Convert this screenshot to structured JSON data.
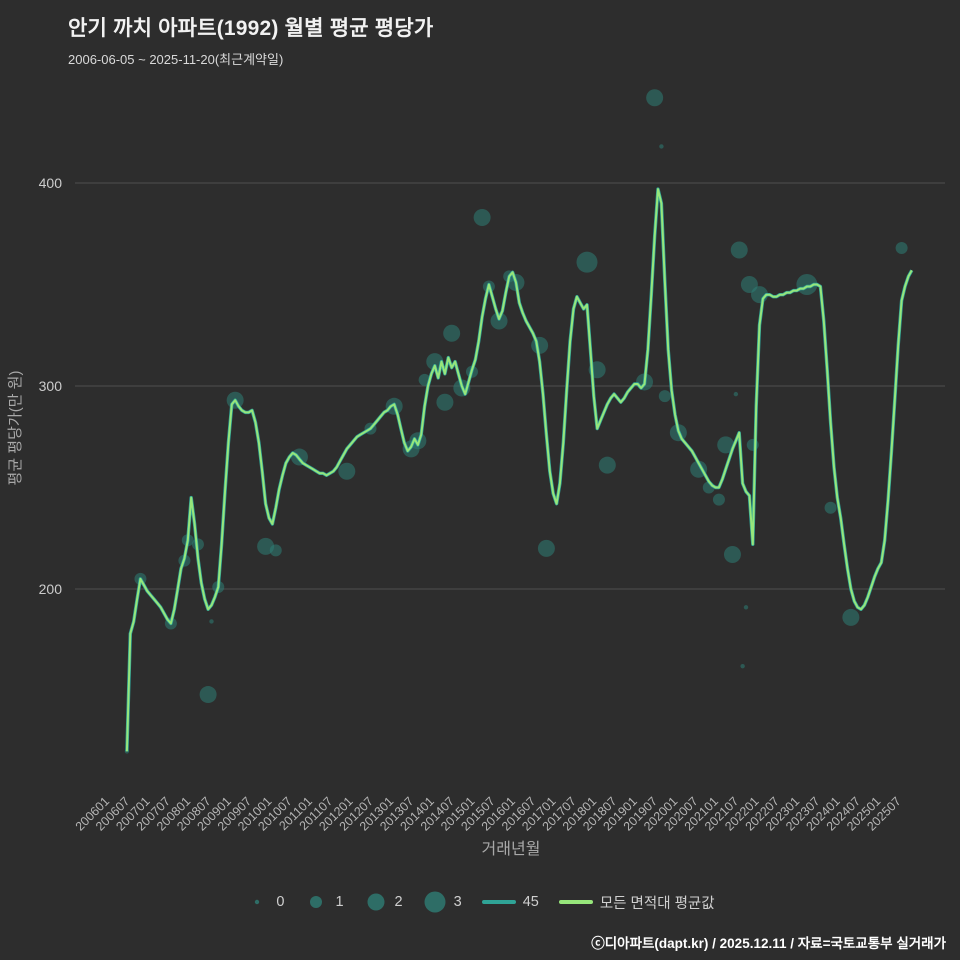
{
  "header": {
    "title": "안기 까치 아파트(1992) 월별 평균 평당가",
    "subtitle": "2006-06-05 ~ 2025-11-20(최근계약일)"
  },
  "footer": {
    "credit": "ⓒ디아파트(dapt.kr) / 2025.12.11 / 자료=국토교통부 실거래가"
  },
  "legend": {
    "size_items": [
      {
        "label": "0"
      },
      {
        "label": "1"
      },
      {
        "label": "2"
      },
      {
        "label": "3"
      }
    ],
    "line_items": [
      {
        "label": "45",
        "color": "#2fa396"
      },
      {
        "label": "모든 면적대 평균값",
        "color": "#97e67b"
      }
    ]
  },
  "chart_data": {
    "type": "line",
    "title": "안기 까치 아파트(1992) 월별 평균 평당가",
    "subtitle": "2006-06-05 ~ 2025-11-20(최근계약일)",
    "xlabel": "거래년월",
    "ylabel": "평균 평당가(만 원)",
    "y_ticks": [
      200,
      300,
      400
    ],
    "ylim": [
      110,
      460
    ],
    "grid": "horizontal",
    "legend_position": "bottom",
    "background": "#2d2d2d",
    "bubble_color": "#2e7d74",
    "bubble_sizes": [
      0,
      1,
      2,
      3
    ],
    "x_ticks": [
      "200601",
      "200607",
      "200701",
      "200707",
      "200801",
      "200807",
      "200901",
      "200907",
      "201001",
      "201007",
      "201101",
      "201107",
      "201201",
      "201207",
      "201301",
      "201307",
      "201401",
      "201407",
      "201501",
      "201507",
      "201601",
      "201607",
      "201701",
      "201707",
      "201801",
      "201807",
      "201901",
      "201907",
      "202001",
      "202007",
      "202101",
      "202107",
      "202201",
      "202207",
      "202301",
      "202307",
      "202401",
      "202407",
      "202501",
      "202507"
    ],
    "series": [
      {
        "name": "45",
        "type": "line",
        "color": "#2fa396",
        "overlaps_average_line": true
      },
      {
        "name": "모든 면적대 평균값",
        "type": "line",
        "color": "#97e67b",
        "points": [
          [
            200606,
            120
          ],
          [
            200607,
            178
          ],
          [
            200608,
            184
          ],
          [
            200609,
            195
          ],
          [
            200610,
            205
          ],
          [
            200611,
            202
          ],
          [
            200612,
            199
          ],
          [
            200701,
            197
          ],
          [
            200702,
            195
          ],
          [
            200703,
            193
          ],
          [
            200704,
            191
          ],
          [
            200705,
            188
          ],
          [
            200706,
            185
          ],
          [
            200707,
            183
          ],
          [
            200708,
            190
          ],
          [
            200709,
            200
          ],
          [
            200710,
            210
          ],
          [
            200711,
            215
          ],
          [
            200712,
            224
          ],
          [
            200801,
            245
          ],
          [
            200802,
            232
          ],
          [
            200803,
            215
          ],
          [
            200804,
            203
          ],
          [
            200805,
            195
          ],
          [
            200806,
            190
          ],
          [
            200807,
            192
          ],
          [
            200808,
            196
          ],
          [
            200809,
            201
          ],
          [
            200810,
            222
          ],
          [
            200811,
            248
          ],
          [
            200812,
            272
          ],
          [
            200901,
            291
          ],
          [
            200902,
            293
          ],
          [
            200903,
            290
          ],
          [
            200904,
            288
          ],
          [
            200905,
            287
          ],
          [
            200906,
            287
          ],
          [
            200907,
            288
          ],
          [
            200908,
            282
          ],
          [
            200909,
            272
          ],
          [
            200910,
            258
          ],
          [
            200911,
            242
          ],
          [
            200912,
            235
          ],
          [
            201001,
            232
          ],
          [
            201002,
            240
          ],
          [
            201003,
            249
          ],
          [
            201004,
            256
          ],
          [
            201005,
            262
          ],
          [
            201006,
            265
          ],
          [
            201007,
            267
          ],
          [
            201008,
            266
          ],
          [
            201009,
            264
          ],
          [
            201010,
            262
          ],
          [
            201011,
            261
          ],
          [
            201012,
            260
          ],
          [
            201101,
            259
          ],
          [
            201102,
            258
          ],
          [
            201103,
            257
          ],
          [
            201104,
            257
          ],
          [
            201105,
            256
          ],
          [
            201106,
            257
          ],
          [
            201107,
            258
          ],
          [
            201108,
            260
          ],
          [
            201109,
            263
          ],
          [
            201110,
            266
          ],
          [
            201111,
            269
          ],
          [
            201112,
            271
          ],
          [
            201201,
            273
          ],
          [
            201202,
            275
          ],
          [
            201203,
            276
          ],
          [
            201204,
            277
          ],
          [
            201205,
            278
          ],
          [
            201206,
            279
          ],
          [
            201207,
            281
          ],
          [
            201208,
            283
          ],
          [
            201209,
            285
          ],
          [
            201210,
            287
          ],
          [
            201211,
            288
          ],
          [
            201212,
            290
          ],
          [
            201301,
            291
          ],
          [
            201302,
            286
          ],
          [
            201303,
            279
          ],
          [
            201304,
            272
          ],
          [
            201305,
            268
          ],
          [
            201306,
            270
          ],
          [
            201307,
            274
          ],
          [
            201308,
            271
          ],
          [
            201309,
            276
          ],
          [
            201310,
            290
          ],
          [
            201311,
            300
          ],
          [
            201312,
            306
          ],
          [
            201401,
            310
          ],
          [
            201402,
            304
          ],
          [
            201403,
            312
          ],
          [
            201404,
            306
          ],
          [
            201405,
            314
          ],
          [
            201406,
            309
          ],
          [
            201407,
            312
          ],
          [
            201408,
            306
          ],
          [
            201409,
            300
          ],
          [
            201410,
            296
          ],
          [
            201411,
            302
          ],
          [
            201412,
            308
          ],
          [
            201501,
            313
          ],
          [
            201502,
            322
          ],
          [
            201503,
            334
          ],
          [
            201504,
            343
          ],
          [
            201505,
            350
          ],
          [
            201506,
            344
          ],
          [
            201507,
            338
          ],
          [
            201508,
            333
          ],
          [
            201509,
            337
          ],
          [
            201510,
            346
          ],
          [
            201511,
            354
          ],
          [
            201512,
            356
          ],
          [
            201601,
            351
          ],
          [
            201602,
            341
          ],
          [
            201603,
            336
          ],
          [
            201604,
            332
          ],
          [
            201605,
            329
          ],
          [
            201606,
            326
          ],
          [
            201607,
            322
          ],
          [
            201608,
            312
          ],
          [
            201609,
            296
          ],
          [
            201610,
            276
          ],
          [
            201611,
            258
          ],
          [
            201612,
            247
          ],
          [
            201701,
            242
          ],
          [
            201702,
            252
          ],
          [
            201703,
            272
          ],
          [
            201704,
            298
          ],
          [
            201705,
            322
          ],
          [
            201706,
            338
          ],
          [
            201707,
            344
          ],
          [
            201708,
            341
          ],
          [
            201709,
            338
          ],
          [
            201710,
            340
          ],
          [
            201711,
            318
          ],
          [
            201712,
            295
          ],
          [
            201801,
            279
          ],
          [
            201802,
            283
          ],
          [
            201803,
            287
          ],
          [
            201804,
            291
          ],
          [
            201805,
            294
          ],
          [
            201806,
            296
          ],
          [
            201807,
            294
          ],
          [
            201808,
            292
          ],
          [
            201809,
            294
          ],
          [
            201810,
            297
          ],
          [
            201811,
            299
          ],
          [
            201812,
            301
          ],
          [
            201901,
            301
          ],
          [
            201902,
            299
          ],
          [
            201903,
            301
          ],
          [
            201904,
            318
          ],
          [
            201905,
            345
          ],
          [
            201906,
            374
          ],
          [
            201907,
            397
          ],
          [
            201908,
            390
          ],
          [
            201909,
            352
          ],
          [
            201910,
            318
          ],
          [
            201911,
            298
          ],
          [
            201912,
            286
          ],
          [
            202001,
            278
          ],
          [
            202002,
            274
          ],
          [
            202003,
            272
          ],
          [
            202004,
            270
          ],
          [
            202005,
            268
          ],
          [
            202006,
            265
          ],
          [
            202007,
            262
          ],
          [
            202008,
            259
          ],
          [
            202009,
            256
          ],
          [
            202010,
            253
          ],
          [
            202011,
            251
          ],
          [
            202012,
            250
          ],
          [
            202101,
            250
          ],
          [
            202102,
            254
          ],
          [
            202103,
            259
          ],
          [
            202104,
            264
          ],
          [
            202105,
            269
          ],
          [
            202106,
            273
          ],
          [
            202107,
            277
          ],
          [
            202108,
            252
          ],
          [
            202109,
            248
          ],
          [
            202110,
            246
          ],
          [
            202111,
            222
          ],
          [
            202112,
            290
          ],
          [
            202201,
            330
          ],
          [
            202202,
            343
          ],
          [
            202203,
            345
          ],
          [
            202204,
            345
          ],
          [
            202205,
            344
          ],
          [
            202206,
            344
          ],
          [
            202207,
            345
          ],
          [
            202208,
            345
          ],
          [
            202209,
            346
          ],
          [
            202210,
            346
          ],
          [
            202211,
            347
          ],
          [
            202212,
            347
          ],
          [
            202301,
            348
          ],
          [
            202302,
            348
          ],
          [
            202303,
            349
          ],
          [
            202304,
            349
          ],
          [
            202305,
            350
          ],
          [
            202306,
            350
          ],
          [
            202307,
            349
          ],
          [
            202308,
            332
          ],
          [
            202309,
            308
          ],
          [
            202310,
            282
          ],
          [
            202311,
            260
          ],
          [
            202312,
            245
          ],
          [
            202401,
            235
          ],
          [
            202402,
            222
          ],
          [
            202403,
            210
          ],
          [
            202404,
            200
          ],
          [
            202405,
            194
          ],
          [
            202406,
            191
          ],
          [
            202407,
            190
          ],
          [
            202408,
            192
          ],
          [
            202409,
            196
          ],
          [
            202410,
            201
          ],
          [
            202411,
            206
          ],
          [
            202412,
            210
          ],
          [
            202501,
            213
          ],
          [
            202502,
            224
          ],
          [
            202503,
            244
          ],
          [
            202504,
            268
          ],
          [
            202505,
            294
          ],
          [
            202506,
            320
          ],
          [
            202507,
            342
          ],
          [
            202508,
            349
          ],
          [
            202509,
            354
          ],
          [
            202510,
            357
          ]
        ]
      }
    ],
    "scatter": [
      [
        200606,
        120,
        0
      ],
      [
        200610,
        205,
        1
      ],
      [
        200707,
        183,
        1
      ],
      [
        200711,
        214,
        1
      ],
      [
        200712,
        224,
        1
      ],
      [
        200803,
        222,
        1
      ],
      [
        200806,
        148,
        2
      ],
      [
        200807,
        184,
        0
      ],
      [
        200809,
        201,
        1
      ],
      [
        200902,
        293,
        2
      ],
      [
        200911,
        221,
        2
      ],
      [
        201002,
        219,
        1
      ],
      [
        201009,
        265,
        2
      ],
      [
        201111,
        258,
        2
      ],
      [
        201206,
        279,
        1
      ],
      [
        201301,
        290,
        2
      ],
      [
        201306,
        269,
        2
      ],
      [
        201308,
        273,
        2
      ],
      [
        201310,
        303,
        1
      ],
      [
        201401,
        312,
        2
      ],
      [
        201404,
        292,
        2
      ],
      [
        201406,
        326,
        2
      ],
      [
        201409,
        299,
        2
      ],
      [
        201412,
        307,
        1
      ],
      [
        201503,
        383,
        2
      ],
      [
        201505,
        349,
        1
      ],
      [
        201508,
        332,
        2
      ],
      [
        201511,
        354,
        1
      ],
      [
        201601,
        351,
        2
      ],
      [
        201608,
        320,
        2
      ],
      [
        201610,
        220,
        2
      ],
      [
        201710,
        361,
        3
      ],
      [
        201801,
        308,
        2
      ],
      [
        201804,
        261,
        2
      ],
      [
        201903,
        302,
        2
      ],
      [
        201906,
        442,
        2
      ],
      [
        201908,
        418,
        0
      ],
      [
        201909,
        295,
        1
      ],
      [
        202001,
        277,
        2
      ],
      [
        202007,
        259,
        2
      ],
      [
        202010,
        250,
        1
      ],
      [
        202101,
        244,
        1
      ],
      [
        202103,
        271,
        2
      ],
      [
        202105,
        217,
        2
      ],
      [
        202106,
        296,
        0
      ],
      [
        202107,
        367,
        2
      ],
      [
        202108,
        162,
        0
      ],
      [
        202109,
        191,
        0
      ],
      [
        202110,
        350,
        2
      ],
      [
        202111,
        271,
        1
      ],
      [
        202201,
        345,
        2
      ],
      [
        202303,
        350,
        3
      ],
      [
        202310,
        240,
        1
      ],
      [
        202404,
        186,
        2
      ],
      [
        202507,
        368,
        1
      ]
    ]
  }
}
